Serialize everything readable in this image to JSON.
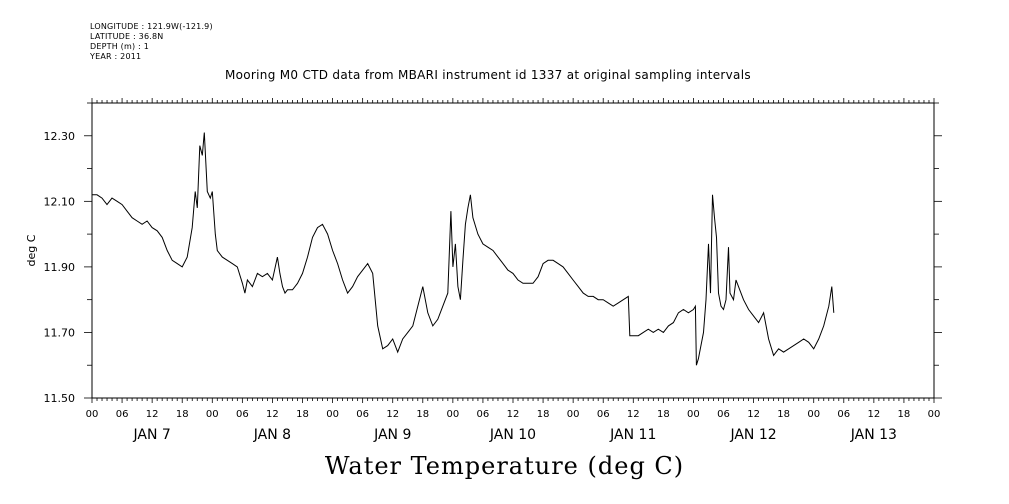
{
  "header": {
    "longitude": "LONGITUDE : 121.9W(-121.9)",
    "latitude": "LATITUDE : 36.8N",
    "depth": "DEPTH (m) : 1",
    "year": "YEAR : 2011"
  },
  "chart_data": {
    "type": "line",
    "title": "Mooring M0 CTD data from MBARI instrument id 1337 at original sampling intervals",
    "footer_title": "Water Temperature (deg C)",
    "ylabel": "deg C",
    "xlabel": "",
    "ylim": [
      11.5,
      12.4
    ],
    "y_ticks": [
      "11.50",
      "11.70",
      "11.90",
      "12.10",
      "12.30"
    ],
    "x_hour_ticks": [
      "00",
      "06",
      "12",
      "18",
      "00",
      "06",
      "12",
      "18",
      "00",
      "06",
      "12",
      "18",
      "00",
      "06",
      "12",
      "18",
      "00",
      "06",
      "12",
      "18",
      "00",
      "06",
      "12",
      "18",
      "00",
      "06",
      "12",
      "18",
      "00"
    ],
    "x_day_labels": [
      "JAN  7",
      "JAN  8",
      "JAN  9",
      "JAN 10",
      "JAN 11",
      "JAN 12",
      "JAN 13"
    ],
    "x_range_hours": [
      0,
      168
    ],
    "grid": false,
    "series": [
      {
        "color": "#000000",
        "points": [
          [
            0,
            12.12
          ],
          [
            1,
            12.12
          ],
          [
            2,
            12.11
          ],
          [
            3,
            12.09
          ],
          [
            4,
            12.11
          ],
          [
            5,
            12.1
          ],
          [
            6,
            12.09
          ],
          [
            7,
            12.07
          ],
          [
            8,
            12.05
          ],
          [
            9,
            12.04
          ],
          [
            10,
            12.03
          ],
          [
            11,
            12.04
          ],
          [
            12,
            12.02
          ],
          [
            13,
            12.01
          ],
          [
            14,
            11.99
          ],
          [
            15,
            11.95
          ],
          [
            16,
            11.92
          ],
          [
            17,
            11.91
          ],
          [
            18,
            11.9
          ],
          [
            19,
            11.93
          ],
          [
            20,
            12.02
          ],
          [
            20.6,
            12.13
          ],
          [
            21,
            12.08
          ],
          [
            21.5,
            12.27
          ],
          [
            22,
            12.24
          ],
          [
            22.4,
            12.31
          ],
          [
            23,
            12.13
          ],
          [
            23.6,
            12.11
          ],
          [
            24,
            12.13
          ],
          [
            24.6,
            12.0
          ],
          [
            25,
            11.95
          ],
          [
            26,
            11.93
          ],
          [
            27,
            11.92
          ],
          [
            28,
            11.91
          ],
          [
            29,
            11.9
          ],
          [
            30,
            11.85
          ],
          [
            30.5,
            11.82
          ],
          [
            31,
            11.86
          ],
          [
            32,
            11.84
          ],
          [
            33,
            11.88
          ],
          [
            34,
            11.87
          ],
          [
            35,
            11.88
          ],
          [
            36,
            11.86
          ],
          [
            37,
            11.93
          ],
          [
            37.5,
            11.88
          ],
          [
            38,
            11.84
          ],
          [
            38.5,
            11.82
          ],
          [
            39,
            11.83
          ],
          [
            40,
            11.83
          ],
          [
            41,
            11.85
          ],
          [
            42,
            11.88
          ],
          [
            43,
            11.93
          ],
          [
            44,
            11.99
          ],
          [
            45,
            12.02
          ],
          [
            46,
            12.03
          ],
          [
            47,
            12.0
          ],
          [
            48,
            11.95
          ],
          [
            49,
            11.91
          ],
          [
            50,
            11.86
          ],
          [
            51,
            11.82
          ],
          [
            52,
            11.84
          ],
          [
            53,
            11.87
          ],
          [
            54,
            11.89
          ],
          [
            55,
            11.91
          ],
          [
            56,
            11.88
          ],
          [
            57,
            11.72
          ],
          [
            58,
            11.65
          ],
          [
            59,
            11.66
          ],
          [
            60,
            11.68
          ],
          [
            61,
            11.64
          ],
          [
            62,
            11.68
          ],
          [
            63,
            11.7
          ],
          [
            64,
            11.72
          ],
          [
            65,
            11.78
          ],
          [
            66,
            11.84
          ],
          [
            67,
            11.76
          ],
          [
            68,
            11.72
          ],
          [
            69,
            11.74
          ],
          [
            70,
            11.78
          ],
          [
            71,
            11.82
          ],
          [
            71.6,
            12.07
          ],
          [
            72,
            11.9
          ],
          [
            72.5,
            11.97
          ],
          [
            73,
            11.84
          ],
          [
            73.5,
            11.8
          ],
          [
            74,
            11.92
          ],
          [
            74.5,
            12.03
          ],
          [
            75,
            12.08
          ],
          [
            75.5,
            12.12
          ],
          [
            76,
            12.05
          ],
          [
            77,
            12.0
          ],
          [
            78,
            11.97
          ],
          [
            79,
            11.96
          ],
          [
            80,
            11.95
          ],
          [
            81,
            11.93
          ],
          [
            82,
            11.91
          ],
          [
            83,
            11.89
          ],
          [
            84,
            11.88
          ],
          [
            85,
            11.86
          ],
          [
            86,
            11.85
          ],
          [
            87,
            11.85
          ],
          [
            88,
            11.85
          ],
          [
            89,
            11.87
          ],
          [
            90,
            11.91
          ],
          [
            91,
            11.92
          ],
          [
            92,
            11.92
          ],
          [
            93,
            11.91
          ],
          [
            94,
            11.9
          ],
          [
            95,
            11.88
          ],
          [
            96,
            11.86
          ],
          [
            97,
            11.84
          ],
          [
            98,
            11.82
          ],
          [
            99,
            11.81
          ],
          [
            100,
            11.81
          ],
          [
            101,
            11.8
          ],
          [
            102,
            11.8
          ],
          [
            103,
            11.79
          ],
          [
            104,
            11.78
          ],
          [
            105,
            11.79
          ],
          [
            106,
            11.8
          ],
          [
            107,
            11.81
          ],
          [
            107.3,
            11.69
          ],
          [
            108,
            11.69
          ],
          [
            109,
            11.69
          ],
          [
            110,
            11.7
          ],
          [
            111,
            11.71
          ],
          [
            112,
            11.7
          ],
          [
            113,
            11.71
          ],
          [
            114,
            11.7
          ],
          [
            115,
            11.72
          ],
          [
            116,
            11.73
          ],
          [
            117,
            11.76
          ],
          [
            118,
            11.77
          ],
          [
            119,
            11.76
          ],
          [
            120,
            11.77
          ],
          [
            120.4,
            11.78
          ],
          [
            120.6,
            11.6
          ],
          [
            121,
            11.62
          ],
          [
            122,
            11.7
          ],
          [
            122.5,
            11.8
          ],
          [
            123,
            11.97
          ],
          [
            123.4,
            11.82
          ],
          [
            123.8,
            12.12
          ],
          [
            124.2,
            12.05
          ],
          [
            124.6,
            11.99
          ],
          [
            125,
            11.82
          ],
          [
            125.5,
            11.78
          ],
          [
            126,
            11.77
          ],
          [
            126.5,
            11.8
          ],
          [
            127,
            11.96
          ],
          [
            127.3,
            11.82
          ],
          [
            128,
            11.8
          ],
          [
            128.5,
            11.86
          ],
          [
            129,
            11.84
          ],
          [
            130,
            11.8
          ],
          [
            131,
            11.77
          ],
          [
            132,
            11.75
          ],
          [
            133,
            11.73
          ],
          [
            134,
            11.76
          ],
          [
            135,
            11.68
          ],
          [
            136,
            11.63
          ],
          [
            137,
            11.65
          ],
          [
            138,
            11.64
          ],
          [
            139,
            11.65
          ],
          [
            140,
            11.66
          ],
          [
            141,
            11.67
          ],
          [
            142,
            11.68
          ],
          [
            143,
            11.67
          ],
          [
            144,
            11.65
          ],
          [
            145,
            11.68
          ],
          [
            146,
            11.72
          ],
          [
            147,
            11.78
          ],
          [
            147.6,
            11.84
          ],
          [
            148,
            11.76
          ]
        ]
      }
    ]
  }
}
